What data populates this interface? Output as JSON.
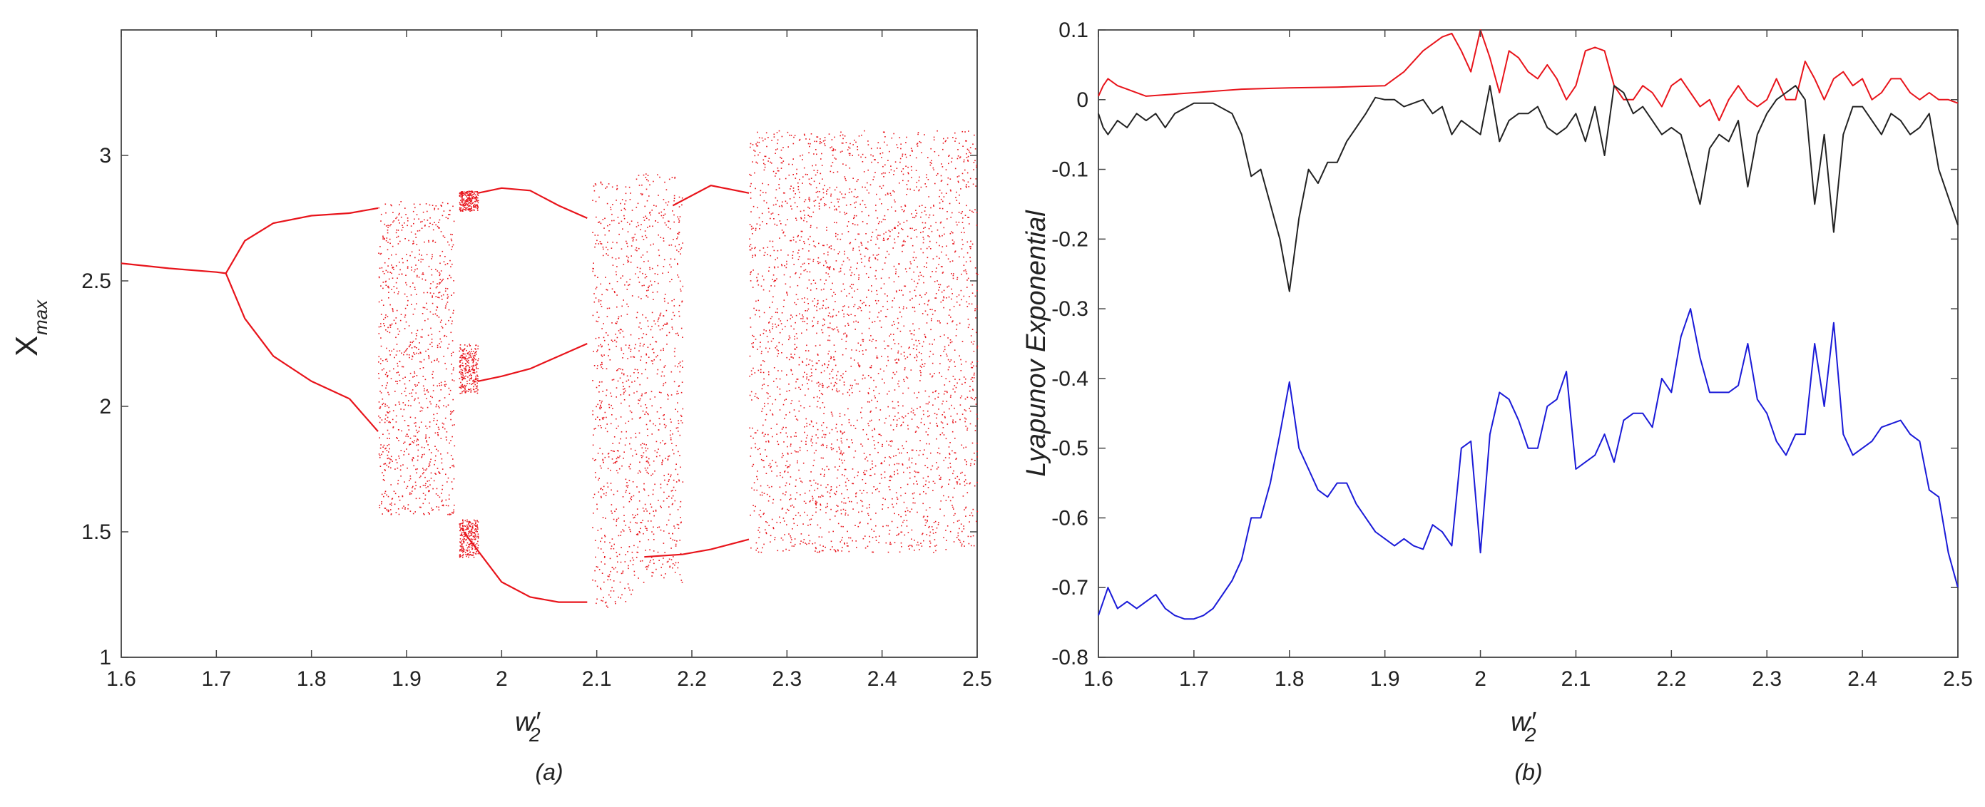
{
  "chart_data": [
    {
      "type": "scatter",
      "caption": "(a)",
      "xlabel": "w′₂",
      "ylabel": "Xmax",
      "xlim": [
        1.6,
        2.5
      ],
      "ylim": [
        1,
        3.5
      ],
      "xticks": [
        1.6,
        1.7,
        1.8,
        1.9,
        2,
        2.1,
        2.2,
        2.3,
        2.4,
        2.5
      ],
      "yticks": [
        1,
        1.5,
        2,
        2.5,
        3
      ],
      "grid": false,
      "color": "#e8141b",
      "periodic_branches": [
        {
          "x": [
            1.6,
            1.65,
            1.7,
            1.71
          ],
          "y": [
            2.57,
            2.55,
            2.535,
            2.53
          ]
        },
        {
          "x": [
            1.71,
            1.73,
            1.76,
            1.8,
            1.84
          ],
          "y": [
            2.53,
            2.66,
            2.73,
            2.76,
            2.77
          ]
        },
        {
          "x": [
            1.71,
            1.73,
            1.76,
            1.8,
            1.84
          ],
          "y": [
            2.53,
            2.35,
            2.2,
            2.1,
            2.03
          ]
        },
        {
          "x": [
            1.84,
            1.87
          ],
          "y": [
            2.77,
            2.79
          ]
        },
        {
          "x": [
            1.84,
            1.87
          ],
          "y": [
            2.03,
            1.9
          ]
        },
        {
          "x": [
            1.975,
            2.0,
            2.03,
            2.06,
            2.09
          ],
          "y": [
            2.85,
            2.87,
            2.86,
            2.8,
            2.75
          ]
        },
        {
          "x": [
            1.975,
            2.0,
            2.03,
            2.06,
            2.09
          ],
          "y": [
            2.1,
            2.12,
            2.15,
            2.2,
            2.25
          ]
        },
        {
          "x": [
            1.96,
            2.0,
            2.03,
            2.06,
            2.09
          ],
          "y": [
            1.5,
            1.3,
            1.24,
            1.22,
            1.22
          ]
        },
        {
          "x": [
            2.18,
            2.22,
            2.26
          ],
          "y": [
            2.8,
            2.88,
            2.85
          ]
        },
        {
          "x": [
            2.15,
            2.19,
            2.22,
            2.26
          ],
          "y": [
            1.4,
            1.41,
            1.43,
            1.47
          ]
        }
      ],
      "chaotic_bands": [
        {
          "x": [
            1.87,
            1.95
          ],
          "y": [
            1.57,
            2.82
          ]
        },
        {
          "x": [
            1.955,
            1.975
          ],
          "y": [
            2.78,
            2.86
          ]
        },
        {
          "x": [
            1.955,
            1.975
          ],
          "y": [
            2.05,
            2.25
          ]
        },
        {
          "x": [
            1.955,
            1.975
          ],
          "y": [
            1.4,
            1.55
          ]
        },
        {
          "x": [
            2.095,
            2.14
          ],
          "y": [
            1.2,
            2.9
          ]
        },
        {
          "x": [
            2.14,
            2.19
          ],
          "y": [
            1.3,
            2.93
          ]
        },
        {
          "x": [
            2.26,
            2.5
          ],
          "y": [
            1.42,
            3.1
          ]
        }
      ]
    },
    {
      "type": "line",
      "caption": "(b)",
      "xlabel": "w′₂",
      "ylabel": "Lyapunov Exponential",
      "xlim": [
        1.6,
        2.5
      ],
      "ylim": [
        -0.8,
        0.1
      ],
      "xticks": [
        1.6,
        1.7,
        1.8,
        1.9,
        2,
        2.1,
        2.2,
        2.3,
        2.4,
        2.5
      ],
      "yticks": [
        0.1,
        0,
        -0.1,
        -0.2,
        -0.3,
        -0.4,
        -0.5,
        -0.6,
        -0.7,
        -0.8
      ],
      "grid": false,
      "series": [
        {
          "color": "#e8141b",
          "x": [
            1.6,
            1.605,
            1.61,
            1.62,
            1.63,
            1.65,
            1.7,
            1.75,
            1.8,
            1.85,
            1.9,
            1.92,
            1.94,
            1.96,
            1.97,
            1.98,
            1.99,
            2.0,
            2.01,
            2.02,
            2.03,
            2.04,
            2.05,
            2.06,
            2.07,
            2.08,
            2.09,
            2.1,
            2.11,
            2.12,
            2.13,
            2.14,
            2.15,
            2.16,
            2.17,
            2.18,
            2.19,
            2.2,
            2.21,
            2.22,
            2.23,
            2.24,
            2.25,
            2.26,
            2.27,
            2.28,
            2.29,
            2.3,
            2.31,
            2.32,
            2.33,
            2.34,
            2.35,
            2.36,
            2.37,
            2.38,
            2.39,
            2.4,
            2.41,
            2.42,
            2.43,
            2.44,
            2.45,
            2.46,
            2.47,
            2.48,
            2.49,
            2.5
          ],
          "y": [
            0.005,
            0.02,
            0.03,
            0.02,
            0.015,
            0.005,
            0.01,
            0.015,
            0.017,
            0.018,
            0.02,
            0.04,
            0.07,
            0.09,
            0.095,
            0.07,
            0.04,
            0.1,
            0.06,
            0.01,
            0.07,
            0.06,
            0.04,
            0.03,
            0.05,
            0.03,
            0.0,
            0.02,
            0.07,
            0.075,
            0.07,
            0.02,
            0.0,
            0.0,
            0.02,
            0.01,
            -0.01,
            0.02,
            0.03,
            0.01,
            -0.01,
            0.0,
            -0.03,
            0.0,
            0.02,
            0.0,
            -0.01,
            0.0,
            0.03,
            0.0,
            0.0,
            0.055,
            0.03,
            0.0,
            0.03,
            0.04,
            0.02,
            0.03,
            0.0,
            0.01,
            0.03,
            0.03,
            0.01,
            0.0,
            0.01,
            0.0,
            0.0,
            -0.005
          ]
        },
        {
          "color": "#222222",
          "x": [
            1.6,
            1.605,
            1.61,
            1.62,
            1.63,
            1.64,
            1.65,
            1.66,
            1.67,
            1.68,
            1.7,
            1.72,
            1.74,
            1.75,
            1.76,
            1.77,
            1.78,
            1.79,
            1.8,
            1.81,
            1.82,
            1.83,
            1.84,
            1.85,
            1.86,
            1.87,
            1.88,
            1.89,
            1.9,
            1.91,
            1.92,
            1.93,
            1.94,
            1.95,
            1.96,
            1.97,
            1.98,
            1.99,
            2.0,
            2.01,
            2.02,
            2.03,
            2.04,
            2.05,
            2.06,
            2.07,
            2.08,
            2.09,
            2.1,
            2.11,
            2.12,
            2.13,
            2.14,
            2.15,
            2.16,
            2.17,
            2.18,
            2.19,
            2.2,
            2.21,
            2.22,
            2.23,
            2.24,
            2.25,
            2.26,
            2.27,
            2.28,
            2.29,
            2.3,
            2.31,
            2.32,
            2.33,
            2.34,
            2.35,
            2.36,
            2.37,
            2.38,
            2.39,
            2.4,
            2.41,
            2.42,
            2.43,
            2.44,
            2.45,
            2.46,
            2.47,
            2.48,
            2.49,
            2.5
          ],
          "y": [
            -0.02,
            -0.04,
            -0.05,
            -0.03,
            -0.04,
            -0.02,
            -0.03,
            -0.02,
            -0.04,
            -0.02,
            -0.005,
            -0.005,
            -0.02,
            -0.05,
            -0.11,
            -0.1,
            -0.15,
            -0.2,
            -0.275,
            -0.17,
            -0.1,
            -0.12,
            -0.09,
            -0.09,
            -0.06,
            -0.04,
            -0.02,
            0.003,
            0.0,
            0.0,
            -0.01,
            -0.005,
            0.0,
            -0.02,
            -0.01,
            -0.05,
            -0.03,
            -0.04,
            -0.05,
            0.02,
            -0.06,
            -0.03,
            -0.02,
            -0.02,
            -0.01,
            -0.04,
            -0.05,
            -0.04,
            -0.02,
            -0.06,
            -0.01,
            -0.08,
            0.02,
            0.01,
            -0.02,
            -0.01,
            -0.03,
            -0.05,
            -0.04,
            -0.05,
            -0.1,
            -0.15,
            -0.07,
            -0.05,
            -0.06,
            -0.03,
            -0.125,
            -0.05,
            -0.02,
            0.0,
            0.01,
            0.02,
            0.0,
            -0.15,
            -0.05,
            -0.19,
            -0.05,
            -0.01,
            -0.01,
            -0.03,
            -0.05,
            -0.02,
            -0.03,
            -0.05,
            -0.04,
            -0.02,
            -0.1,
            -0.14,
            -0.18
          ]
        },
        {
          "color": "#1a1ad8",
          "x": [
            1.6,
            1.605,
            1.61,
            1.62,
            1.63,
            1.64,
            1.65,
            1.66,
            1.67,
            1.68,
            1.69,
            1.7,
            1.71,
            1.72,
            1.73,
            1.74,
            1.75,
            1.76,
            1.77,
            1.78,
            1.79,
            1.8,
            1.81,
            1.82,
            1.83,
            1.84,
            1.85,
            1.86,
            1.87,
            1.88,
            1.89,
            1.9,
            1.91,
            1.92,
            1.93,
            1.94,
            1.95,
            1.96,
            1.97,
            1.98,
            1.99,
            2.0,
            2.01,
            2.02,
            2.03,
            2.04,
            2.05,
            2.06,
            2.07,
            2.08,
            2.09,
            2.1,
            2.11,
            2.12,
            2.13,
            2.14,
            2.15,
            2.16,
            2.17,
            2.18,
            2.19,
            2.2,
            2.21,
            2.22,
            2.23,
            2.24,
            2.25,
            2.26,
            2.27,
            2.28,
            2.29,
            2.3,
            2.31,
            2.32,
            2.33,
            2.34,
            2.35,
            2.36,
            2.37,
            2.38,
            2.39,
            2.4,
            2.41,
            2.42,
            2.43,
            2.44,
            2.45,
            2.46,
            2.47,
            2.48,
            2.49,
            2.5
          ],
          "y": [
            -0.74,
            -0.72,
            -0.7,
            -0.73,
            -0.72,
            -0.73,
            -0.72,
            -0.71,
            -0.73,
            -0.74,
            -0.745,
            -0.745,
            -0.74,
            -0.73,
            -0.71,
            -0.69,
            -0.66,
            -0.6,
            -0.6,
            -0.55,
            -0.48,
            -0.405,
            -0.5,
            -0.53,
            -0.56,
            -0.57,
            -0.55,
            -0.55,
            -0.58,
            -0.6,
            -0.62,
            -0.63,
            -0.64,
            -0.63,
            -0.64,
            -0.645,
            -0.61,
            -0.62,
            -0.64,
            -0.5,
            -0.49,
            -0.65,
            -0.48,
            -0.42,
            -0.43,
            -0.46,
            -0.5,
            -0.5,
            -0.44,
            -0.43,
            -0.39,
            -0.53,
            -0.52,
            -0.51,
            -0.48,
            -0.52,
            -0.46,
            -0.45,
            -0.45,
            -0.47,
            -0.4,
            -0.42,
            -0.34,
            -0.3,
            -0.37,
            -0.42,
            -0.42,
            -0.42,
            -0.41,
            -0.35,
            -0.43,
            -0.45,
            -0.49,
            -0.51,
            -0.48,
            -0.48,
            -0.35,
            -0.44,
            -0.32,
            -0.48,
            -0.51,
            -0.5,
            -0.49,
            -0.47,
            -0.465,
            -0.46,
            -0.48,
            -0.49,
            -0.56,
            -0.57,
            -0.65,
            -0.7
          ]
        }
      ]
    }
  ]
}
